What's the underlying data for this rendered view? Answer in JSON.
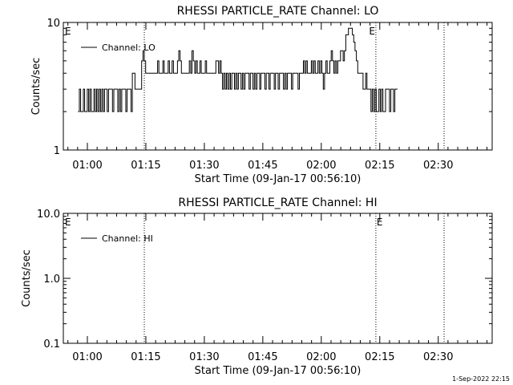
{
  "footer_text": "1-Sep-2022 22:15",
  "chart_data": [
    {
      "type": "line",
      "title": "RHESSI PARTICLE_RATE Channel: LO",
      "xlabel": "Start Time (09-Jan-17 00:56:10)",
      "ylabel": "Counts/sec",
      "y_scale": "log",
      "ylim": [
        1,
        10
      ],
      "y_ticks": [
        {
          "value": 1,
          "label": "1"
        },
        {
          "value": 10,
          "label": "10"
        }
      ],
      "x_range_min": [
        -6.17,
        103.83
      ],
      "x_ticks": [
        {
          "value": 0,
          "label": "01:00"
        },
        {
          "value": 15,
          "label": "01:15"
        },
        {
          "value": 30,
          "label": "01:30"
        },
        {
          "value": 45,
          "label": "01:45"
        },
        {
          "value": 60,
          "label": "02:00"
        },
        {
          "value": 75,
          "label": "02:15"
        },
        {
          "value": 90,
          "label": "02:30"
        }
      ],
      "vertical_markers": [
        {
          "x": 14.6,
          "label": "",
          "label_side": "left"
        },
        {
          "x": 74.0,
          "label": "E",
          "label_side": "left"
        },
        {
          "x": 91.5,
          "label": "",
          "label_side": "left"
        }
      ],
      "corner_label": "E",
      "legend": {
        "entries": [
          "Channel: LO"
        ],
        "placement": "top-left"
      },
      "series": [
        {
          "name": "Channel: LO",
          "x_start": -2.4,
          "x_step": 0.34,
          "values": [
            2,
            3,
            2,
            2,
            3,
            2,
            2,
            3,
            2,
            3,
            2,
            2,
            3,
            2,
            3,
            2,
            3,
            2,
            3,
            2,
            3,
            3,
            2,
            3,
            3,
            3,
            2,
            3,
            3,
            3,
            2,
            3,
            2,
            3,
            3,
            3,
            2,
            3,
            3,
            3,
            2,
            4,
            4,
            3,
            3,
            3,
            3,
            3,
            5,
            6,
            5,
            4,
            4,
            4,
            4,
            4,
            4,
            4,
            4,
            4,
            5,
            4,
            4,
            4,
            5,
            4,
            4,
            4,
            5,
            4,
            4,
            5,
            4,
            4,
            4,
            5,
            6,
            5,
            4,
            4,
            4,
            4,
            4,
            4,
            5,
            4,
            6,
            5,
            4,
            5,
            4,
            4,
            5,
            4,
            4,
            4,
            5,
            4,
            4,
            4,
            4,
            4,
            4,
            4,
            5,
            5,
            4,
            5,
            4,
            3,
            4,
            3,
            4,
            3,
            4,
            3,
            4,
            4,
            3,
            4,
            3,
            4,
            4,
            3,
            4,
            3,
            4,
            4,
            4,
            3,
            4,
            4,
            3,
            4,
            3,
            4,
            4,
            3,
            4,
            4,
            4,
            3,
            4,
            4,
            3,
            4,
            4,
            4,
            3,
            4,
            4,
            3,
            4,
            4,
            4,
            3,
            4,
            3,
            4,
            4,
            4,
            3,
            4,
            4,
            4,
            4,
            3,
            4,
            4,
            4,
            5,
            4,
            5,
            4,
            4,
            4,
            5,
            4,
            5,
            4,
            4,
            5,
            4,
            5,
            4,
            3,
            4,
            5,
            4,
            4,
            5,
            6,
            5,
            4,
            5,
            4,
            5,
            5,
            6,
            6,
            5,
            6,
            8,
            8,
            9,
            9,
            9,
            8,
            7,
            6,
            5,
            4,
            4,
            4,
            4,
            3,
            3,
            4,
            3,
            3,
            3,
            2,
            3,
            2,
            3,
            2,
            2,
            3,
            2,
            3,
            2,
            2,
            3,
            3,
            3,
            2,
            3,
            3,
            2,
            3,
            3
          ]
        }
      ]
    },
    {
      "type": "line",
      "title": "RHESSI PARTICLE_RATE Channel: HI",
      "xlabel": "Start Time (09-Jan-17 00:56:10)",
      "ylabel": "Counts/sec",
      "y_scale": "log",
      "ylim": [
        0.1,
        10
      ],
      "y_ticks": [
        {
          "value": 0.1,
          "label": "0.1"
        },
        {
          "value": 1,
          "label": "1.0"
        },
        {
          "value": 10,
          "label": "10.0"
        }
      ],
      "x_range_min": [
        -6.17,
        103.83
      ],
      "x_ticks": [
        {
          "value": 0,
          "label": "01:00"
        },
        {
          "value": 15,
          "label": "01:15"
        },
        {
          "value": 30,
          "label": "01:30"
        },
        {
          "value": 45,
          "label": "01:45"
        },
        {
          "value": 60,
          "label": "02:00"
        },
        {
          "value": 75,
          "label": "02:15"
        },
        {
          "value": 90,
          "label": "02:30"
        }
      ],
      "vertical_markers": [
        {
          "x": 14.6,
          "label": "",
          "label_side": "left"
        },
        {
          "x": 74.0,
          "label": "E",
          "label_side": "right"
        },
        {
          "x": 91.5,
          "label": "",
          "label_side": "left"
        }
      ],
      "corner_label": "E",
      "legend": {
        "entries": [
          "Channel: HI"
        ],
        "placement": "top-left"
      },
      "series": [
        {
          "name": "Channel: HI",
          "x_start": 0,
          "x_step": 1,
          "values": []
        }
      ]
    }
  ]
}
